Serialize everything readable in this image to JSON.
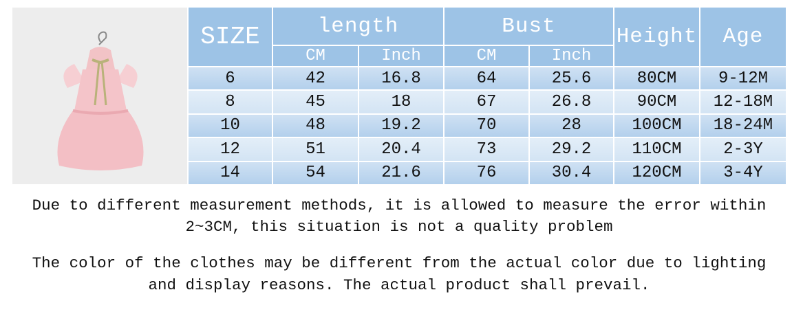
{
  "product_image": {
    "alt": "Pink ruffled baby dress on hanger"
  },
  "table": {
    "header": {
      "size": "SIZE",
      "length": "length",
      "bust": "Bust",
      "height": "Height",
      "age": "Age",
      "length_cm": "CM",
      "length_inch": "Inch",
      "bust_cm": "CM",
      "bust_inch": "Inch"
    },
    "rows": [
      [
        "6",
        "42",
        "16.8",
        "64",
        "25.6",
        "80CM",
        "9-12M"
      ],
      [
        "8",
        "45",
        "18",
        "67",
        "26.8",
        "90CM",
        "12-18M"
      ],
      [
        "10",
        "48",
        "19.2",
        "70",
        "28",
        "100CM",
        "18-24M"
      ],
      [
        "12",
        "51",
        "20.4",
        "73",
        "29.2",
        "110CM",
        "2-3Y"
      ],
      [
        "14",
        "54",
        "21.6",
        "76",
        "30.4",
        "120CM",
        "3-4Y"
      ]
    ]
  },
  "notes": {
    "measurement_line1": "Due to different measurement methods, it is allowed to measure the error within",
    "measurement_line2": "2~3CM, this situation is not a quality problem",
    "color_line1": "The color of the clothes may be different from the actual color due to lighting",
    "color_line2": "and display reasons. The actual product shall prevail."
  },
  "colors": {
    "header": "#9dc3e6",
    "row_dark": "#bcd6ee",
    "row_light": "#dbe8f5"
  }
}
